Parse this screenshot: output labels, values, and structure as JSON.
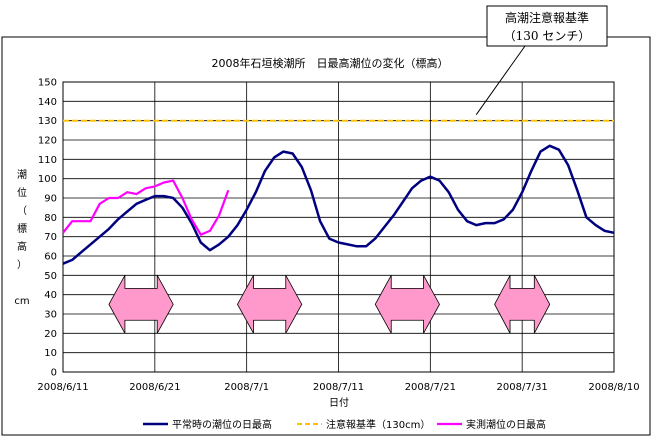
{
  "chart_data": {
    "type": "line",
    "title": "2008年石垣検潮所　日最高潮位の変化（標高）",
    "xlabel": "日付",
    "ylabel": [
      "潮",
      "位",
      "（",
      "標",
      "高",
      "）",
      "",
      "cm"
    ],
    "ylim": [
      0,
      150
    ],
    "yticks": [
      0,
      10,
      20,
      30,
      40,
      50,
      60,
      70,
      80,
      90,
      100,
      110,
      120,
      130,
      140,
      150
    ],
    "xlim": [
      "2008/6/11",
      "2008/8/10"
    ],
    "xticks": [
      "2008/6/11",
      "2008/6/21",
      "2008/7/1",
      "2008/7/11",
      "2008/7/21",
      "2008/7/31",
      "2008/8/10"
    ],
    "grid": true,
    "legend_position": "bottom",
    "series": [
      {
        "name": "平常時の潮位の日最高",
        "color": "#000080",
        "x": [
          "2008/6/11",
          "2008/6/12",
          "2008/6/13",
          "2008/6/14",
          "2008/6/15",
          "2008/6/16",
          "2008/6/17",
          "2008/6/18",
          "2008/6/19",
          "2008/6/20",
          "2008/6/21",
          "2008/6/22",
          "2008/6/23",
          "2008/6/24",
          "2008/6/25",
          "2008/6/26",
          "2008/6/27",
          "2008/6/28",
          "2008/6/29",
          "2008/6/30",
          "2008/7/1",
          "2008/7/2",
          "2008/7/3",
          "2008/7/4",
          "2008/7/5",
          "2008/7/6",
          "2008/7/7",
          "2008/7/8",
          "2008/7/9",
          "2008/7/10",
          "2008/7/11",
          "2008/7/12",
          "2008/7/13",
          "2008/7/14",
          "2008/7/15",
          "2008/7/16",
          "2008/7/17",
          "2008/7/18",
          "2008/7/19",
          "2008/7/20",
          "2008/7/21",
          "2008/7/22",
          "2008/7/23",
          "2008/7/24",
          "2008/7/25",
          "2008/7/26",
          "2008/7/27",
          "2008/7/28",
          "2008/7/29",
          "2008/7/30",
          "2008/7/31",
          "2008/8/1",
          "2008/8/2",
          "2008/8/3",
          "2008/8/4",
          "2008/8/5",
          "2008/8/6",
          "2008/8/7",
          "2008/8/8",
          "2008/8/9",
          "2008/8/10"
        ],
        "values": [
          56,
          58,
          62,
          66,
          70,
          74,
          79,
          83,
          87,
          89,
          91,
          91,
          90,
          85,
          77,
          67,
          63,
          66,
          70,
          76,
          84,
          93,
          104,
          111,
          114,
          113,
          106,
          94,
          78,
          69,
          67,
          66,
          65,
          65,
          69,
          75,
          81,
          88,
          95,
          99,
          101,
          99,
          93,
          84,
          78,
          76,
          77,
          77,
          79,
          84,
          93,
          104,
          114,
          117,
          115,
          107,
          94,
          80,
          76,
          73,
          72
        ]
      },
      {
        "name": "注意報基準（130cm）",
        "color": "#FFC000",
        "x": [
          "2008/6/11",
          "2008/8/10"
        ],
        "values": [
          130,
          130
        ]
      },
      {
        "name": "実測潮位の日最高",
        "color": "#FF00FF",
        "x": [
          "2008/6/11",
          "2008/6/12",
          "2008/6/13",
          "2008/6/14",
          "2008/6/15",
          "2008/6/16",
          "2008/6/17",
          "2008/6/18",
          "2008/6/19",
          "2008/6/20",
          "2008/6/21",
          "2008/6/22",
          "2008/6/23",
          "2008/6/24",
          "2008/6/25",
          "2008/6/26",
          "2008/6/27",
          "2008/6/28",
          "2008/6/29"
        ],
        "values": [
          72,
          78,
          78,
          78,
          87,
          90,
          90,
          93,
          92,
          95,
          96,
          98,
          99,
          90,
          79,
          71,
          73,
          81,
          94
        ]
      }
    ],
    "annotations": [
      {
        "label": "高潮注意報基準",
        "sublabel": "（130 センチ）",
        "points_to": [
          "2008/7/26",
          130
        ]
      }
    ],
    "arrows": [
      {
        "start": "2008/6/16",
        "end": "2008/6/23",
        "y_center": 35,
        "y_range": [
          20,
          50
        ]
      },
      {
        "start": "2008/6/30",
        "end": "2008/7/7",
        "y_center": 35,
        "y_range": [
          20,
          50
        ]
      },
      {
        "start": "2008/7/15",
        "end": "2008/7/22",
        "y_center": 35,
        "y_range": [
          20,
          50
        ]
      },
      {
        "start": "2008/7/28",
        "end": "2008/8/3",
        "y_center": 35,
        "y_range": [
          20,
          50
        ]
      }
    ]
  }
}
